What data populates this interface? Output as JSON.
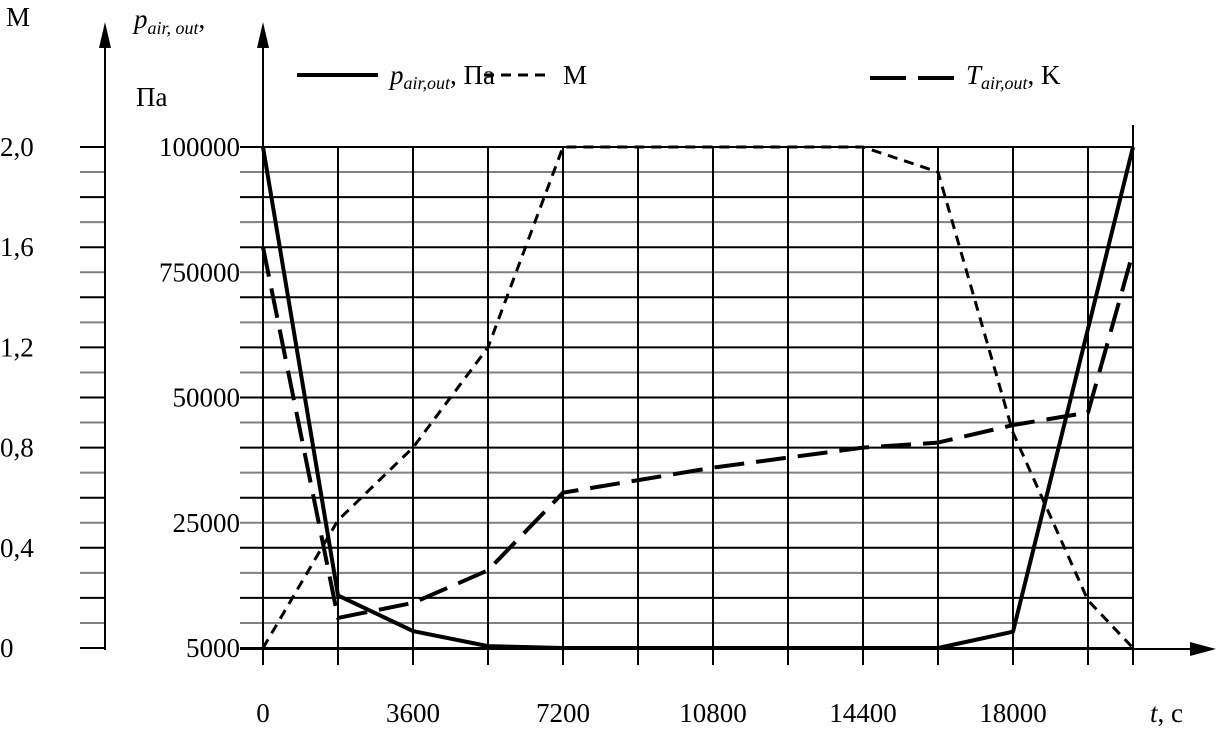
{
  "chart_data": {
    "type": "line",
    "y_left_label": "M",
    "y_pressure_label": "p",
    "y_pressure_label_sub": "air, out",
    "y_pressure_label_suffix": ",",
    "y_pressure_unit": "Па",
    "xlabel": "t",
    "xlabel_unit": ", с",
    "x_ticks": [
      0,
      3600,
      7200,
      10800,
      14400,
      18000
    ],
    "x_tick_labels": [
      "0",
      "3600",
      "7200",
      "10800",
      "14400",
      "18000"
    ],
    "xlim": [
      0,
      20880
    ],
    "x_grid_step": 1800,
    "m_ticks": [
      0,
      0.4,
      0.8,
      1.2,
      1.6,
      2.0
    ],
    "m_tick_labels": [
      "0",
      "0,4",
      "0,8",
      "1,2",
      "1,6",
      "2,0"
    ],
    "ylim": [
      0,
      2.0
    ],
    "pressure_ticks": [
      5000,
      25000,
      50000,
      750000,
      100000
    ],
    "pressure_tick_labels": [
      "5000",
      "25000",
      "50000",
      "750000",
      "100000"
    ],
    "grid": true,
    "legend_position": "top",
    "legend": [
      {
        "key": "pressure",
        "label": "p",
        "sub": "air,out",
        "suffix": ", Па",
        "style": "solid"
      },
      {
        "key": "mach",
        "label": "M",
        "style": "short-dash"
      },
      {
        "key": "temperature",
        "label": "T",
        "sub": "air,out",
        "suffix": ", K",
        "style": "long-dash"
      }
    ],
    "series": [
      {
        "key": "pressure",
        "axis": "pressure",
        "x": [
          0,
          1800,
          3600,
          5400,
          7200,
          10800,
          14400,
          16200,
          18000,
          20880
        ],
        "values": [
          100000,
          13400,
          7700,
          5300,
          5000,
          5000,
          5000,
          5000,
          7600,
          100000
        ]
      },
      {
        "key": "mach",
        "axis": "m",
        "x": [
          0,
          1800,
          3600,
          5400,
          7200,
          14400,
          16200,
          18000,
          19800,
          20880
        ],
        "values": [
          0,
          0.51,
          0.8,
          1.2,
          2.0,
          2.0,
          1.9,
          0.86,
          0.19,
          0
        ]
      },
      {
        "key": "temperature",
        "axis": "m",
        "x": [
          0,
          1800,
          3600,
          5400,
          7200,
          10800,
          14400,
          16200,
          18000,
          19800,
          20880
        ],
        "values": [
          1.6,
          0.12,
          0.18,
          0.31,
          0.62,
          0.72,
          0.8,
          0.82,
          0.89,
          0.94,
          1.58
        ]
      }
    ],
    "colors": {
      "line": "#000000",
      "major_grid": "#000000",
      "minor_grid": "#808080"
    }
  }
}
